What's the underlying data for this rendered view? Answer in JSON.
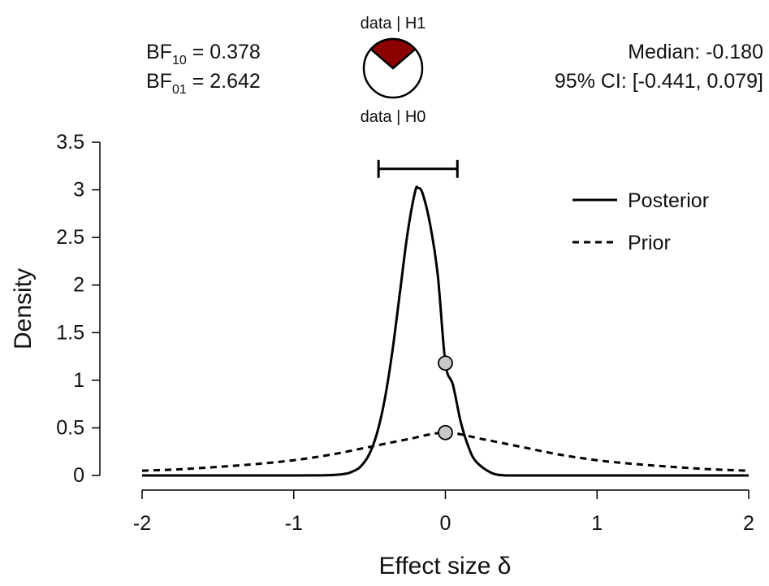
{
  "header": {
    "bf10": {
      "prefix": "BF",
      "sub": "10",
      "value": " = 0.378"
    },
    "bf01": {
      "prefix": "BF",
      "sub": "01",
      "value": " = 2.642"
    },
    "median_text": "Median: -0.180",
    "ci_text": "95% CI: [-0.441, 0.079]",
    "pie_top_label": "data | H1",
    "pie_bottom_label": "data | H0"
  },
  "colors": {
    "h1_slice": "#8b0000",
    "h0_slice": "#ffffff",
    "curve": "#000000",
    "marker_fill": "#c8c8c8"
  },
  "chart_data": {
    "type": "line",
    "xlabel": "Effect size δ",
    "ylabel": "Density",
    "xlim": [
      -2,
      2
    ],
    "ylim": [
      0,
      3.5
    ],
    "x_ticks": [
      -2,
      -1,
      0,
      1,
      2
    ],
    "x_tick_labels": [
      "-2",
      "-1",
      "0",
      "1",
      "2"
    ],
    "y_ticks": [
      0,
      0.5,
      1,
      1.5,
      2,
      2.5,
      3,
      3.5
    ],
    "y_tick_labels": [
      "0",
      "0.5",
      "1",
      "1.5",
      "2",
      "2.5",
      "3",
      "3.5"
    ],
    "series": [
      {
        "name": "Posterior",
        "style": "solid",
        "x": [
          -2.0,
          -1.0,
          -0.7,
          -0.6,
          -0.55,
          -0.5,
          -0.45,
          -0.4,
          -0.35,
          -0.3,
          -0.25,
          -0.2,
          -0.18,
          -0.15,
          -0.1,
          -0.05,
          0.0,
          0.05,
          0.1,
          0.15,
          0.2,
          0.3,
          0.4,
          0.6,
          1.0,
          2.0
        ],
        "y": [
          0.0,
          0.0,
          0.01,
          0.05,
          0.11,
          0.23,
          0.45,
          0.8,
          1.3,
          1.92,
          2.54,
          2.98,
          3.02,
          2.96,
          2.63,
          2.1,
          1.18,
          0.95,
          0.57,
          0.31,
          0.15,
          0.03,
          0.0,
          0.0,
          0.0,
          0.0
        ]
      },
      {
        "name": "Prior",
        "style": "dashed",
        "x": [
          -2.0,
          -1.75,
          -1.5,
          -1.25,
          -1.0,
          -0.75,
          -0.5,
          -0.25,
          0.0,
          0.25,
          0.5,
          0.75,
          1.0,
          1.25,
          1.5,
          1.75,
          2.0
        ],
        "y": [
          0.05,
          0.065,
          0.09,
          0.12,
          0.16,
          0.22,
          0.3,
          0.38,
          0.45,
          0.38,
          0.3,
          0.22,
          0.16,
          0.12,
          0.09,
          0.065,
          0.05
        ]
      }
    ],
    "points": [
      {
        "x": 0.0,
        "y": 1.18
      },
      {
        "x": 0.0,
        "y": 0.45
      }
    ],
    "credible_interval": {
      "lower": -0.441,
      "upper": 0.079,
      "y": 3.22
    },
    "bayes_factor_pie": {
      "h1_fraction": 0.274,
      "h0_fraction": 0.726
    },
    "legend": {
      "position": "top-right"
    }
  }
}
